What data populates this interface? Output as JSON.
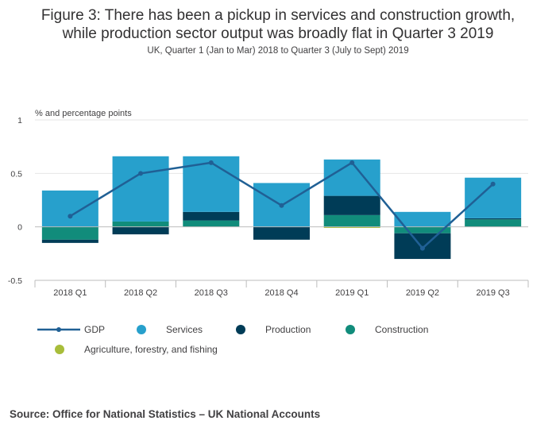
{
  "title_line1": "Figure 3: There has been a pickup in services and construction growth,",
  "title_line2": "while production sector output was broadly flat in Quarter 3 2019",
  "subtitle": "UK, Quarter 1 (Jan to Mar) 2018 to Quarter 3 (July to Sept) 2019",
  "source": "Source: Office for National Statistics – UK National Accounts",
  "colors": {
    "gdp": "#206095",
    "services": "#27a0cc",
    "production": "#003c57",
    "construction": "#118c7b",
    "agriculture": "#a8bd3a",
    "grid": "#e6e6e6",
    "axis": "#bcbcbc"
  },
  "chart_data": {
    "type": "bar",
    "stacked": true,
    "ylabel": "% and percentage points",
    "ylim": [
      -0.5,
      1
    ],
    "yticks": [
      -0.5,
      0,
      0.5,
      1
    ],
    "ytick_labels": [
      "-0.5",
      "0",
      "0.5",
      "1"
    ],
    "categories": [
      "2018 Q1",
      "2018 Q2",
      "2018 Q3",
      "2018 Q4",
      "2019 Q1",
      "2019 Q2",
      "2019 Q3"
    ],
    "series": [
      {
        "name": "Agriculture, forestry, and fishing",
        "key": "agriculture",
        "kind": "bar",
        "values": [
          0,
          0,
          0,
          0,
          -0.01,
          0,
          0
        ]
      },
      {
        "name": "Construction",
        "key": "construction",
        "kind": "bar",
        "values": [
          -0.12,
          0.05,
          0.06,
          0,
          0.11,
          -0.06,
          0.07
        ]
      },
      {
        "name": "Production",
        "key": "production",
        "kind": "bar",
        "values": [
          -0.03,
          -0.07,
          0.08,
          -0.12,
          0.18,
          -0.24,
          0.01
        ]
      },
      {
        "name": "Services",
        "key": "services",
        "kind": "bar",
        "values": [
          0.34,
          0.61,
          0.52,
          0.41,
          0.34,
          0.14,
          0.38
        ]
      },
      {
        "name": "GDP",
        "key": "gdp",
        "kind": "line",
        "values": [
          0.1,
          0.5,
          0.6,
          0.2,
          0.6,
          -0.2,
          0.4
        ]
      }
    ],
    "legend": {
      "position": "bottom",
      "items": [
        {
          "key": "gdp",
          "label": "GDP",
          "marker": "line"
        },
        {
          "key": "services",
          "label": "Services",
          "marker": "circle"
        },
        {
          "key": "production",
          "label": "Production",
          "marker": "circle"
        },
        {
          "key": "construction",
          "label": "Construction",
          "marker": "circle"
        },
        {
          "key": "agriculture",
          "label": "Agriculture, forestry, and fishing",
          "marker": "circle"
        }
      ]
    }
  }
}
